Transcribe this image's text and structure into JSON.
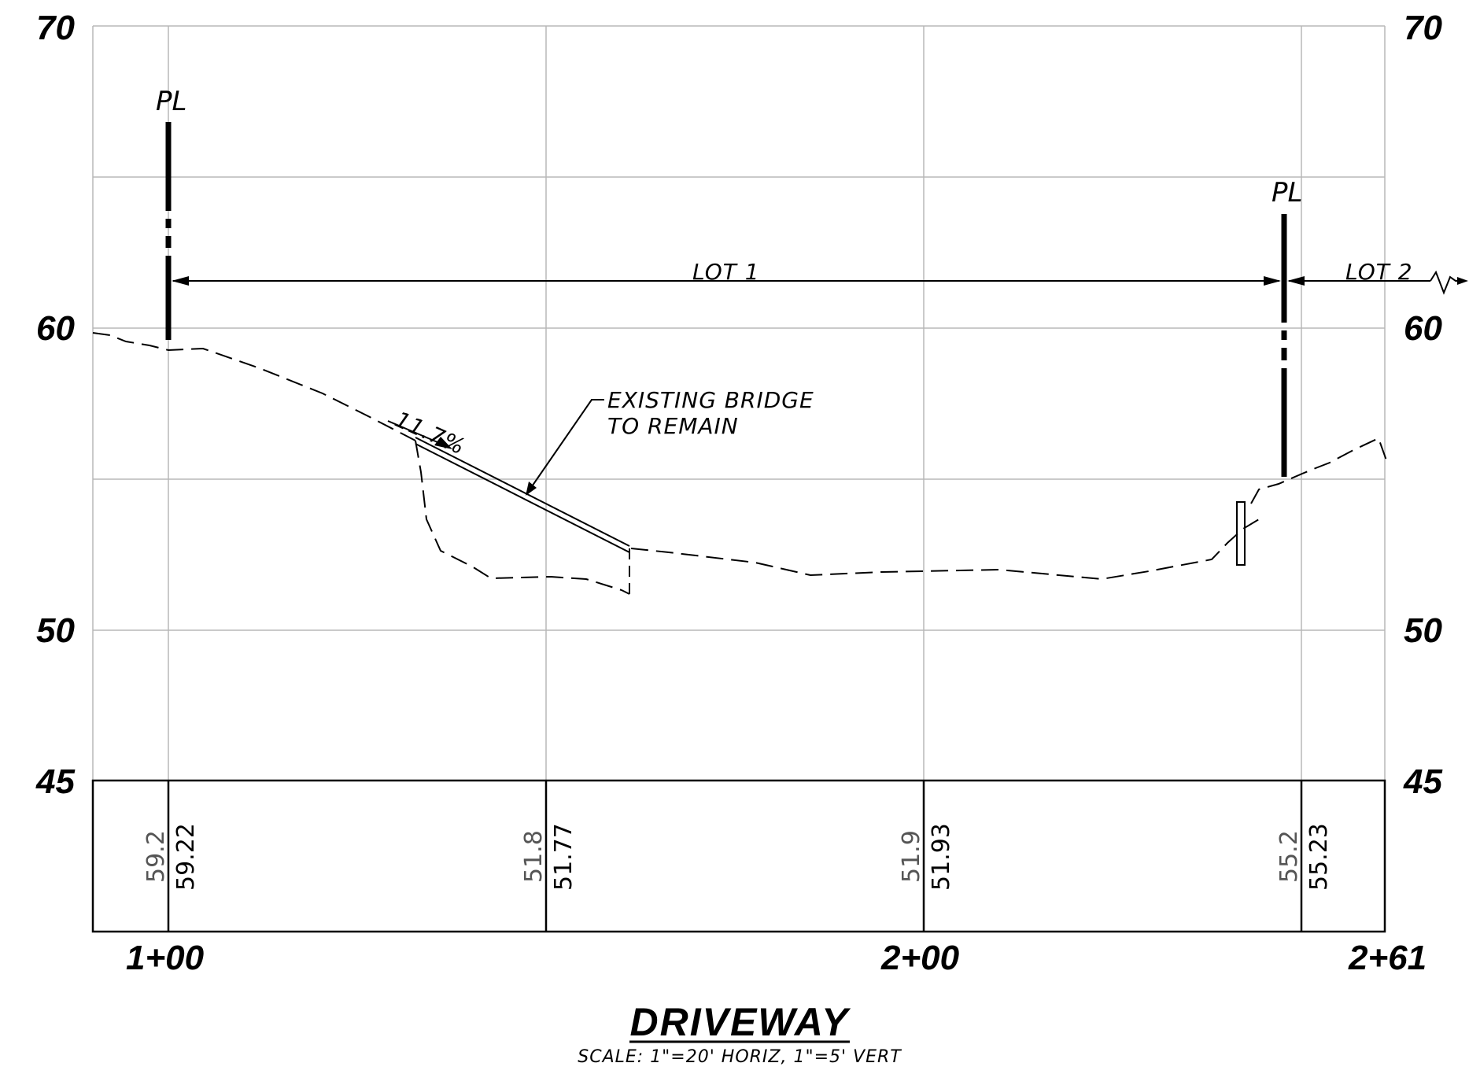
{
  "drawing": {
    "title": "DRIVEWAY",
    "scale_note": "SCALE:  1\"=20' HORIZ, 1\"=5' VERT",
    "elevation_labels": {
      "e70_left": "70",
      "e70_right": "70",
      "e60_left": "60",
      "e60_right": "60",
      "e50_left": "50",
      "e50_right": "50",
      "e45_left": "45",
      "e45_right": "45"
    },
    "station_labels": {
      "s100": "1+00",
      "s200": "2+00",
      "s261": "2+61"
    },
    "annotations": {
      "lot1": "LOT 1",
      "lot2": "LOT 2",
      "bridge_line1": "EXISTING BRIDGE",
      "bridge_line2": "TO REMAIN",
      "slope": "11.7%",
      "property_line": "PL"
    },
    "elevation_table": {
      "c1": {
        "existing": "59.2",
        "proposed": "59.22"
      },
      "c2": {
        "existing": "51.8",
        "proposed": "51.77"
      },
      "c3": {
        "existing": "51.9",
        "proposed": "51.93"
      },
      "c4": {
        "existing": "55.2",
        "proposed": "55.23"
      }
    }
  }
}
